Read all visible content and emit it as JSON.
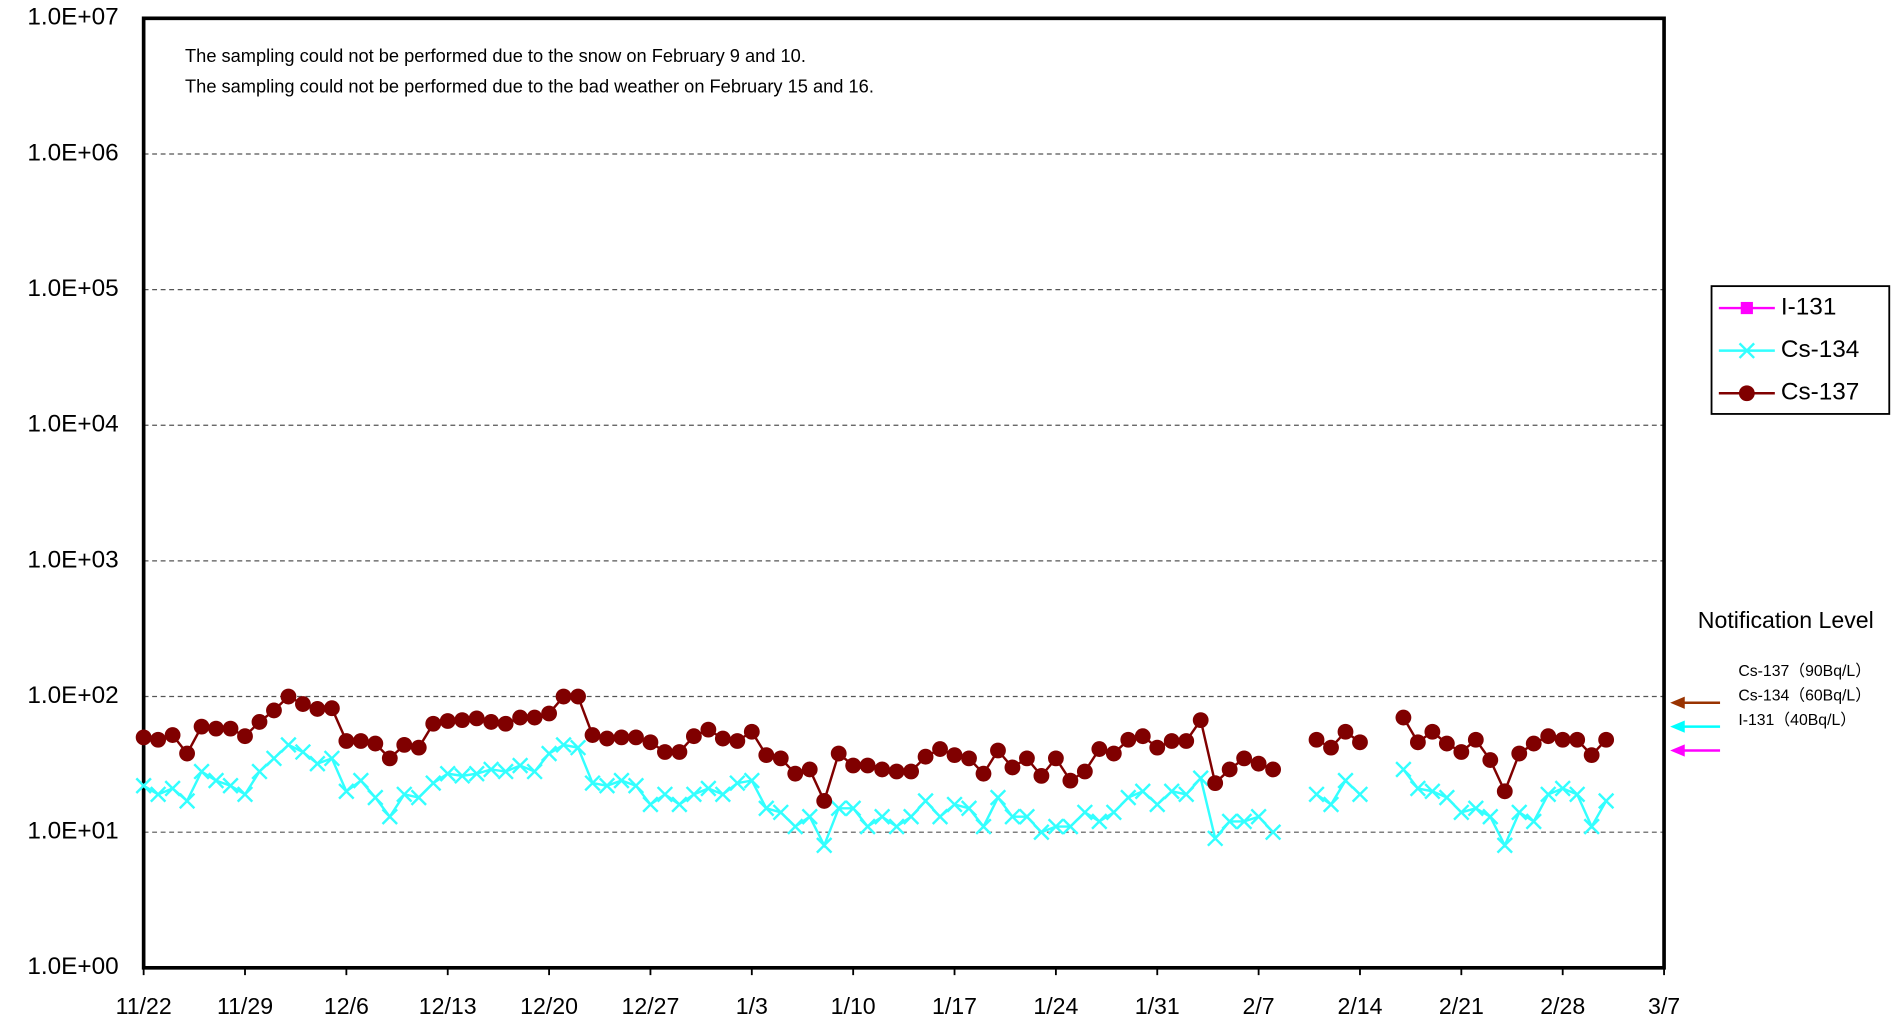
{
  "chart_data": {
    "type": "line",
    "annotations": [
      "The sampling could not be performed due to the snow on February 9 and 10.",
      "The sampling could not be performed due to the bad weather on February 15 and 16."
    ],
    "categories": [
      "11/22",
      null,
      null,
      null,
      null,
      null,
      null,
      "11/29",
      null,
      null,
      null,
      null,
      null,
      null,
      "12/6",
      null,
      null,
      null,
      null,
      null,
      null,
      "12/13",
      null,
      null,
      null,
      null,
      null,
      null,
      "12/20",
      null,
      null,
      null,
      null,
      null,
      null,
      "12/27",
      null,
      null,
      null,
      null,
      null,
      null,
      "1/3",
      null,
      null,
      null,
      null,
      null,
      null,
      "1/10",
      null,
      null,
      null,
      null,
      null,
      null,
      "1/17",
      null,
      null,
      null,
      null,
      null,
      null,
      "1/24",
      null,
      null,
      null,
      null,
      null,
      null,
      "1/31",
      null,
      null,
      null,
      null,
      null,
      null,
      "2/7",
      null,
      null,
      null,
      null,
      null,
      null,
      "2/14",
      null,
      null,
      null,
      null,
      null,
      null,
      "2/21",
      null,
      null,
      null,
      null,
      null,
      null,
      "2/28",
      null,
      null,
      null,
      null,
      null,
      null,
      "3/7"
    ],
    "log_scale": true,
    "grid": true,
    "legend": "right",
    "ylim": [
      1,
      10000000
    ],
    "yticks": [
      {
        "value": 1,
        "label": "1.0E+00"
      },
      {
        "value": 10,
        "label": "1.0E+01"
      },
      {
        "value": 100,
        "label": "1.0E+02"
      },
      {
        "value": 1000,
        "label": "1.0E+03"
      },
      {
        "value": 10000,
        "label": "1.0E+04"
      },
      {
        "value": 100000,
        "label": "1.0E+05"
      },
      {
        "value": 1000000,
        "label": "1.0E+06"
      },
      {
        "value": 10000000,
        "label": "1.0E+07"
      }
    ],
    "series": [
      {
        "name": "I-131",
        "color": "#ff00ff",
        "marker": "square",
        "values": [
          null,
          null,
          null,
          null,
          null,
          null,
          null,
          null,
          null,
          null,
          null,
          null,
          null,
          null,
          null,
          null,
          null,
          null,
          null,
          null,
          null,
          null,
          null,
          null,
          null,
          null,
          null,
          null,
          null,
          null,
          null,
          null,
          null,
          null,
          null,
          null,
          null,
          null,
          null,
          null,
          null,
          null,
          null,
          null,
          null,
          null,
          null,
          null,
          null,
          null,
          null,
          null,
          null,
          null,
          null,
          null,
          null,
          null,
          null,
          null,
          null,
          null,
          null,
          null,
          null,
          null,
          null,
          null,
          null,
          null,
          null,
          null,
          null,
          null,
          null,
          null,
          null,
          null,
          null,
          null,
          null,
          null,
          null,
          null,
          null,
          null,
          null,
          null,
          null,
          null,
          null,
          null,
          null,
          null,
          null,
          null,
          null,
          null,
          null,
          null,
          null,
          null,
          null,
          null,
          null,
          null
        ]
      },
      {
        "name": "Cs-134",
        "color": "#33ffff",
        "marker": "x",
        "values": [
          22,
          19,
          21,
          17,
          28,
          24,
          22,
          19,
          28,
          35,
          44,
          39,
          32,
          35,
          20,
          24,
          18,
          13,
          19,
          18,
          23,
          27,
          26,
          27,
          29,
          28,
          31,
          28,
          38,
          44,
          42,
          23,
          22,
          24,
          22,
          16,
          19,
          16,
          19,
          21,
          19,
          23,
          24,
          15,
          14,
          11,
          13,
          8,
          15,
          15,
          11,
          13,
          11,
          13,
          17,
          13,
          16,
          15,
          11,
          18,
          13,
          13,
          10,
          11,
          11,
          14,
          12,
          14,
          18,
          20,
          16,
          20,
          19,
          25,
          9,
          12,
          12,
          13,
          10,
          null,
          null,
          19,
          16,
          24,
          19,
          null,
          null,
          29,
          21,
          20,
          18,
          14,
          15,
          13,
          8,
          14,
          12,
          19,
          21,
          19,
          11,
          17,
          null,
          null,
          null,
          null
        ]
      },
      {
        "name": "Cs-137",
        "color": "#800000",
        "marker": "circle",
        "values": [
          50,
          48,
          52,
          38,
          60,
          58,
          58,
          51,
          65,
          79,
          100,
          88,
          81,
          82,
          47,
          47,
          45,
          35,
          44,
          42,
          63,
          66,
          67,
          69,
          65,
          63,
          70,
          70,
          75,
          100,
          100,
          52,
          49,
          50,
          50,
          46,
          39,
          39,
          51,
          57,
          49,
          47,
          55,
          37,
          35,
          27,
          29,
          17,
          38,
          31,
          31,
          29,
          28,
          28,
          36,
          41,
          37,
          35,
          27,
          40,
          30,
          35,
          26,
          35,
          24,
          28,
          41,
          38,
          48,
          51,
          42,
          47,
          47,
          67,
          23,
          29,
          35,
          32,
          29,
          null,
          null,
          48,
          42,
          55,
          46,
          null,
          null,
          70,
          46,
          55,
          45,
          39,
          48,
          34,
          20,
          38,
          45,
          51,
          48,
          48,
          37,
          48,
          null,
          null,
          null,
          null
        ]
      }
    ],
    "notification_title": "Notification Level",
    "notification_levels": [
      {
        "label": "Cs-137（90Bq/L）",
        "value": 90,
        "color": "#993300"
      },
      {
        "label": "Cs-134（60Bq/L）",
        "value": 60,
        "color": "#00ffff"
      },
      {
        "label": "I-131（40Bq/L）",
        "value": 40,
        "color": "#ff00ff"
      }
    ]
  }
}
